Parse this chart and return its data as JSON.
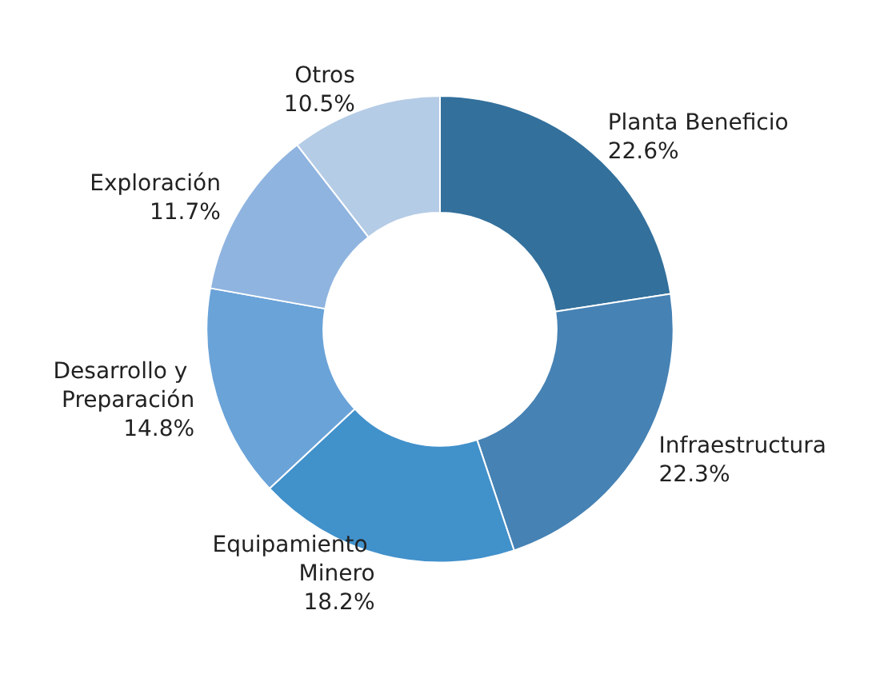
{
  "chart_data": {
    "type": "donut",
    "categories": [
      "Planta Beneficio",
      "Infraestructura",
      "Equipamiento Minero",
      "Desarrollo y Preparación",
      "Exploración",
      "Otros"
    ],
    "values": [
      22.6,
      22.3,
      18.2,
      14.8,
      11.7,
      10.5
    ],
    "colors": [
      "#33709c",
      "#4682b4",
      "#4191cb",
      "#6aa3d8",
      "#8fb4e0",
      "#b5cce6"
    ],
    "value_labels": [
      "22.6%",
      "22.3%",
      "18.2%",
      "14.8%",
      "11.7%",
      "10.5%"
    ],
    "legend": false
  }
}
